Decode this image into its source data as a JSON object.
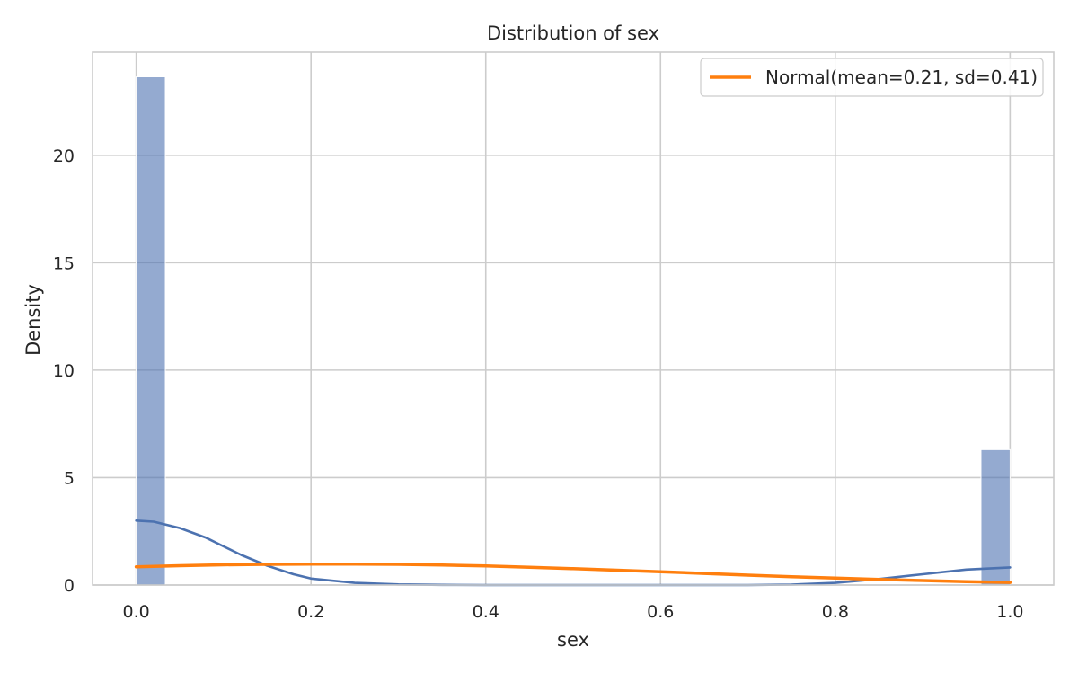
{
  "chart_data": {
    "type": "bar",
    "title": "Distribution of sex",
    "xlabel": "sex",
    "ylabel": "Density",
    "xlim": [
      -0.05,
      1.05
    ],
    "ylim": [
      0,
      24.8
    ],
    "grid": true,
    "legend_placement": "top-right",
    "x_ticks": [
      {
        "value": 0.0,
        "label": "0.0"
      },
      {
        "value": 0.2,
        "label": "0.2"
      },
      {
        "value": 0.4,
        "label": "0.4"
      },
      {
        "value": 0.6,
        "label": "0.6"
      },
      {
        "value": 0.8,
        "label": "0.8"
      },
      {
        "value": 1.0,
        "label": "1.0"
      }
    ],
    "y_ticks": [
      {
        "value": 0,
        "label": "0"
      },
      {
        "value": 5,
        "label": "5"
      },
      {
        "value": 10,
        "label": "10"
      },
      {
        "value": 15,
        "label": "15"
      },
      {
        "value": 20,
        "label": "20"
      }
    ],
    "histogram": {
      "color": "#4c72b0",
      "bins": [
        {
          "x0": 0.0,
          "x1": 0.0333,
          "density": 23.65
        },
        {
          "x0": 0.9667,
          "x1": 1.0,
          "density": 6.3
        }
      ]
    },
    "series": [
      {
        "kind": "kde",
        "color": "#4c72b0",
        "x": [
          0.0,
          0.02,
          0.05,
          0.08,
          0.1,
          0.12,
          0.15,
          0.18,
          0.2,
          0.25,
          0.3,
          0.35,
          0.4,
          0.5,
          0.6,
          0.7,
          0.75,
          0.8,
          0.85,
          0.9,
          0.95,
          1.0
        ],
        "y": [
          3.0,
          2.95,
          2.65,
          2.2,
          1.8,
          1.4,
          0.9,
          0.5,
          0.3,
          0.1,
          0.03,
          0.01,
          0.0,
          0.0,
          0.0,
          0.0,
          0.02,
          0.1,
          0.28,
          0.5,
          0.72,
          0.82
        ]
      },
      {
        "kind": "line",
        "name": "Normal(mean=0.21, sd=0.41)",
        "color": "#ff7f0e",
        "x": [
          0.0,
          0.05,
          0.1,
          0.15,
          0.2,
          0.25,
          0.3,
          0.35,
          0.4,
          0.45,
          0.5,
          0.55,
          0.6,
          0.65,
          0.7,
          0.75,
          0.8,
          0.85,
          0.9,
          0.95,
          1.0
        ],
        "y": [
          0.85,
          0.9,
          0.94,
          0.96,
          0.97,
          0.97,
          0.96,
          0.93,
          0.89,
          0.83,
          0.76,
          0.69,
          0.62,
          0.54,
          0.46,
          0.39,
          0.32,
          0.26,
          0.21,
          0.16,
          0.12
        ]
      }
    ]
  }
}
